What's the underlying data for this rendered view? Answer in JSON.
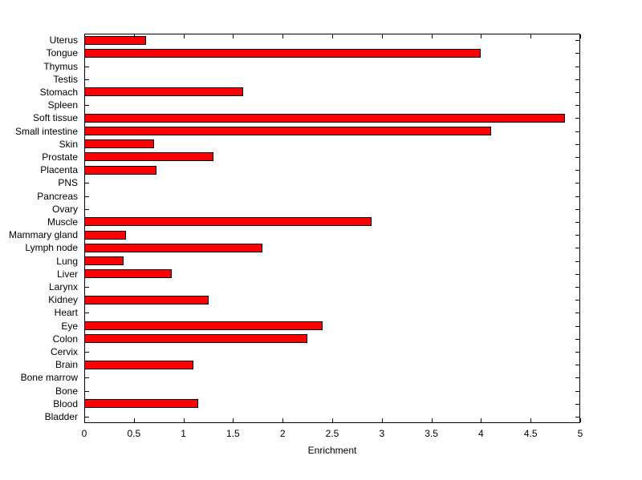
{
  "chart_data": {
    "type": "bar",
    "orientation": "horizontal",
    "title": "",
    "xlabel": "Enrichment",
    "ylabel": "",
    "xlim": [
      0,
      5
    ],
    "xticks": [
      0,
      0.5,
      1,
      1.5,
      2,
      2.5,
      3,
      3.5,
      4,
      4.5,
      5
    ],
    "xtick_labels": [
      "0",
      "0.5",
      "1",
      "1.5",
      "2",
      "2.5",
      "3",
      "3.5",
      "4",
      "4.5",
      "5"
    ],
    "grid": false,
    "legend": null,
    "bar_color": "#ff0000",
    "bar_edge_color": "#000000",
    "categories": [
      "Uterus",
      "Tongue",
      "Thymus",
      "Testis",
      "Stomach",
      "Spleen",
      "Soft tissue",
      "Small intestine",
      "Skin",
      "Prostate",
      "Placenta",
      "PNS",
      "Pancreas",
      "Ovary",
      "Muscle",
      "Mammary gland",
      "Lymph node",
      "Lung",
      "Liver",
      "Larynx",
      "Kidney",
      "Heart",
      "Eye",
      "Colon",
      "Cervix",
      "Brain",
      "Bone marrow",
      "Bone",
      "Blood",
      "Bladder"
    ],
    "values": [
      0.62,
      4.0,
      0,
      0,
      1.6,
      0,
      4.85,
      4.1,
      0.7,
      1.3,
      0.73,
      0,
      0,
      0,
      2.9,
      0.42,
      1.8,
      0.4,
      0.88,
      0,
      1.25,
      0,
      2.4,
      2.25,
      0,
      1.1,
      0,
      0,
      1.15,
      0
    ]
  }
}
